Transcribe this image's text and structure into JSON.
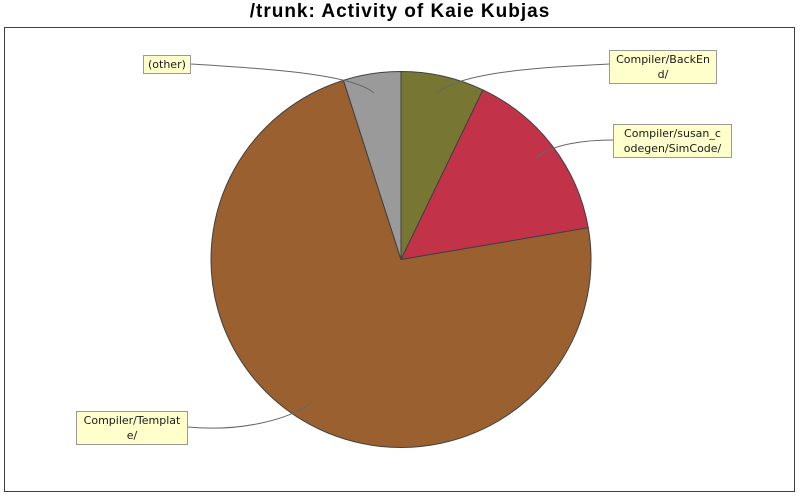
{
  "title": "/trunk: Activity of Kaie Kubjas",
  "chart_data": {
    "type": "pie",
    "title": "/trunk: Activity of Kaie Kubjas",
    "legend_position": "callout-labels",
    "start_angle_deg": 0,
    "direction": "clockwise-from-top",
    "segments": [
      {
        "id": "backend",
        "label": "Compiler/BackEnd/",
        "percent": 7.1,
        "color": "#777733"
      },
      {
        "id": "simcode",
        "label": "Compiler/susan_codegen/SimCode/",
        "percent": 15.2,
        "color": "#C23349"
      },
      {
        "id": "template",
        "label": "Compiler/Template/",
        "percent": 72.8,
        "color": "#9A6030"
      },
      {
        "id": "other",
        "label": "(other)",
        "percent": 4.9,
        "color": "#9A9A9A"
      }
    ]
  },
  "callouts": {
    "other": "(other)",
    "backend": "Compiler/BackEn\nd/",
    "simcode": "Compiler/susan_c\nodegen/SimCode/",
    "template": "Compiler/Templat\ne/"
  },
  "colors": {
    "label_bg": "#FFFFCC",
    "label_border": "#999999",
    "slice_stroke": "#404040",
    "leader_line": "#666666",
    "frame_border": "#404040",
    "title_color": "#000000"
  }
}
